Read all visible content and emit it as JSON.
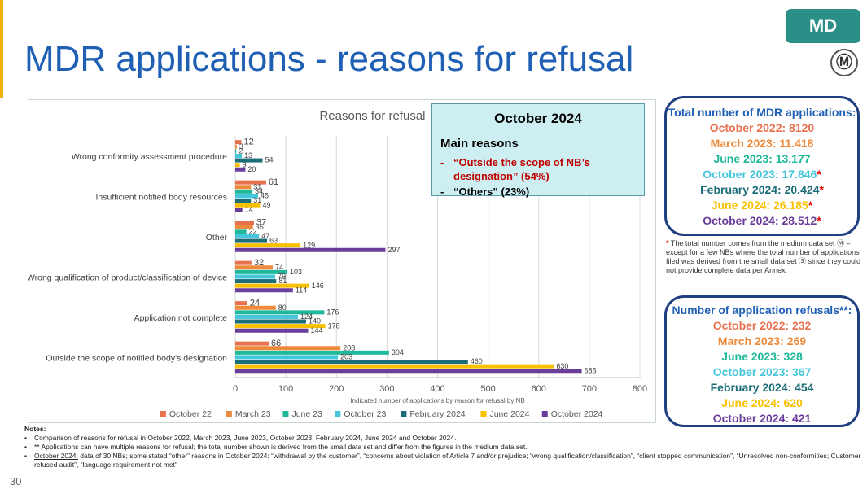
{
  "page": {
    "title": "MDR applications - reasons for refusal",
    "badge": "MD",
    "logo": "Ⓜ",
    "page_number": "30"
  },
  "colors": {
    "title": "#1f5fb4",
    "badge_bg": "#2a8f86",
    "panel_border": "#1f3f80",
    "callout_bg": "#cdeff2",
    "callout_red": "#c00000",
    "accent": "#f2b100"
  },
  "chart_data": {
    "type": "bar",
    "orientation": "horizontal",
    "title": "Reasons for refusal",
    "xlabel": "Indicated number of applications by reason for refusal by NB",
    "ylabel": "",
    "xlim": [
      0,
      800
    ],
    "xticks": [
      "0",
      "100",
      "200",
      "300",
      "400",
      "500",
      "600",
      "700",
      "800"
    ],
    "grid": true,
    "legend_position": "bottom",
    "categories": [
      "Wrong conformity assessment procedure",
      "Insufficient notified body resources",
      "Other",
      "Wrong qualification of product/classification of device",
      "Application not complete",
      "Outside the scope of notified body's designation"
    ],
    "series": [
      {
        "name": "October 22",
        "color": "#e8714f",
        "values": [
          12,
          61,
          37,
          32,
          24,
          66
        ]
      },
      {
        "name": "March 23",
        "color": "#ee8a3b",
        "values": [
          3,
          31,
          35,
          74,
          80,
          208
        ]
      },
      {
        "name": "June 23",
        "color": "#1fb99a",
        "values": [
          2,
          34,
          22,
          103,
          176,
          304
        ]
      },
      {
        "name": "October 23",
        "color": "#45c6da",
        "values": [
          13,
          45,
          47,
          79,
          124,
          203
        ]
      },
      {
        "name": "February 2024",
        "color": "#1b6e78",
        "values": [
          54,
          31,
          63,
          81,
          140,
          460
        ]
      },
      {
        "name": "June 2024",
        "color": "#f8c000",
        "values": [
          9,
          49,
          129,
          146,
          178,
          630
        ]
      },
      {
        "name": "October 2024",
        "color": "#6a3d9a",
        "values": [
          20,
          14,
          297,
          114,
          144,
          685
        ]
      }
    ]
  },
  "callout": {
    "title": "October 2024",
    "subtitle": "Main reasons",
    "dash": "-",
    "items": [
      "“Outside the scope of NB’s designation” (54%)",
      "“Others” (23%)"
    ]
  },
  "totals_panel": {
    "title": "Total number of MDR applications:",
    "star": "*",
    "items": [
      {
        "text": "October 2022: 8120",
        "color": "#e8714f",
        "star": false
      },
      {
        "text": "March 2023: 11.418",
        "color": "#ee8a3b",
        "star": false
      },
      {
        "text": "June 2023: 13.177",
        "color": "#1fb99a",
        "star": false
      },
      {
        "text": "October 2023: 17.846",
        "color": "#45c6da",
        "star": true
      },
      {
        "text": "February 2024: 20.424",
        "color": "#1b6e78",
        "star": true
      },
      {
        "text": "June 2024: 26.185",
        "color": "#f8c000",
        "star": true
      },
      {
        "text": "October 2024: 28.512",
        "color": "#6a3d9a",
        "star": true
      }
    ],
    "footnote": "The total number comes from the medium data set Ⓜ – except for a few NBs where the total number of applications filed was derived from the small data set Ⓢ since they could not provide complete data per Annex."
  },
  "refusals_panel": {
    "title": "Number of application refusals**:",
    "items": [
      {
        "text": "October 2022: 232",
        "color": "#e8714f"
      },
      {
        "text": "March 2023: 269",
        "color": "#ee8a3b"
      },
      {
        "text": "June 2023: 328",
        "color": "#1fb99a"
      },
      {
        "text": "October 2023: 367",
        "color": "#45c6da"
      },
      {
        "text": "February 2024: 454",
        "color": "#1b6e78"
      },
      {
        "text": "June 2024: 620",
        "color": "#f8c000"
      },
      {
        "text": "October 2024: 421",
        "color": "#6a3d9a"
      }
    ]
  },
  "notes": {
    "title": "Notes:",
    "bullet": "•",
    "line1": "Comparison of reasons for refusal in October 2022, March 2023, June 2023, October 2023, February 2024, June 2024 and October 2024.",
    "line2": "** Applications can have multiple reasons for refusal; the total number shown is derived from the small data set and differ from the figures in the medium data set.",
    "line3_label": "October 2024:",
    "line3": " data of 30 NBs; some stated “other” reasons in October 2024: “withdrawal by the customer”, “concerns about violation of Article 7 and/or prejudice; “wrong qualification/classification”, “client stopped communication”, “Unresolved non-conformities; Customer refused audit”, “language requirement not met”"
  }
}
